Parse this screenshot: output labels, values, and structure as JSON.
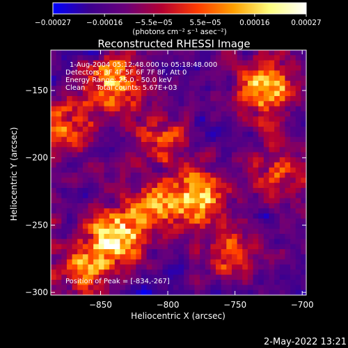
{
  "chart_data": {
    "type": "heatmap",
    "title": "Reconstructed RHESSI Image",
    "xlabel": "Heliocentric X (arcsec)",
    "ylabel": "Heliocentric Y (arcsec)",
    "xlim": [
      -887,
      -697
    ],
    "ylim": [
      -302,
      -120
    ],
    "x_ticks": [
      -850,
      -800,
      -750,
      -700
    ],
    "x_tick_labels": [
      "−850",
      "−800",
      "−750",
      "−700"
    ],
    "y_ticks": [
      -150,
      -200,
      -250,
      -300
    ],
    "y_tick_labels": [
      "−150",
      "−200",
      "−250",
      "−300"
    ],
    "colorbar": {
      "min": -0.00027,
      "max": 0.00027,
      "ticks": [
        -0.00027,
        -0.00016,
        -5.5e-05,
        5.5e-05,
        0.00016,
        0.00027
      ],
      "tick_labels": [
        "−0.00027",
        "−0.00016",
        "−5.5e−05",
        "5.5e−05",
        "0.00016",
        "0.00027"
      ],
      "units_label": "(photons cm⁻² s⁻¹ asec⁻²)",
      "colors": [
        "#0000ff",
        "#3b0090",
        "#6a007a",
        "#b40032",
        "#ff3c00",
        "#ffa000",
        "#ffff80",
        "#ffffff"
      ]
    },
    "annotations": [
      "1-Aug-2004 05:12:48.000 to 05:18:48.000",
      "Detectors: 3F 4F 5F 6F 7F 8F, Att 0",
      "Energy Range: 25.0 - 50.0 keV",
      "Clean     Total counts: 5.67E+03"
    ],
    "peak_label": "Position of Peak = [-834,-267]",
    "peak": {
      "x": -834,
      "y": -267
    },
    "grid_size": 48,
    "bright_sources": [
      {
        "x": -778,
        "y": -228,
        "intensity": 0.8
      },
      {
        "x": -838,
        "y": -258,
        "intensity": 0.95
      },
      {
        "x": -840,
        "y": -143,
        "intensity": 0.75
      },
      {
        "x": -728,
        "y": -148,
        "intensity": 0.85
      },
      {
        "x": -872,
        "y": -175,
        "intensity": 0.55
      },
      {
        "x": -862,
        "y": -282,
        "intensity": 0.55
      },
      {
        "x": -755,
        "y": -270,
        "intensity": 0.45
      },
      {
        "x": -805,
        "y": -185,
        "intensity": 0.4
      },
      {
        "x": -810,
        "y": -235,
        "intensity": 0.5
      },
      {
        "x": -718,
        "y": -210,
        "intensity": 0.4
      }
    ]
  },
  "footer": {
    "timestamp": "2-May-2022 13:21"
  }
}
